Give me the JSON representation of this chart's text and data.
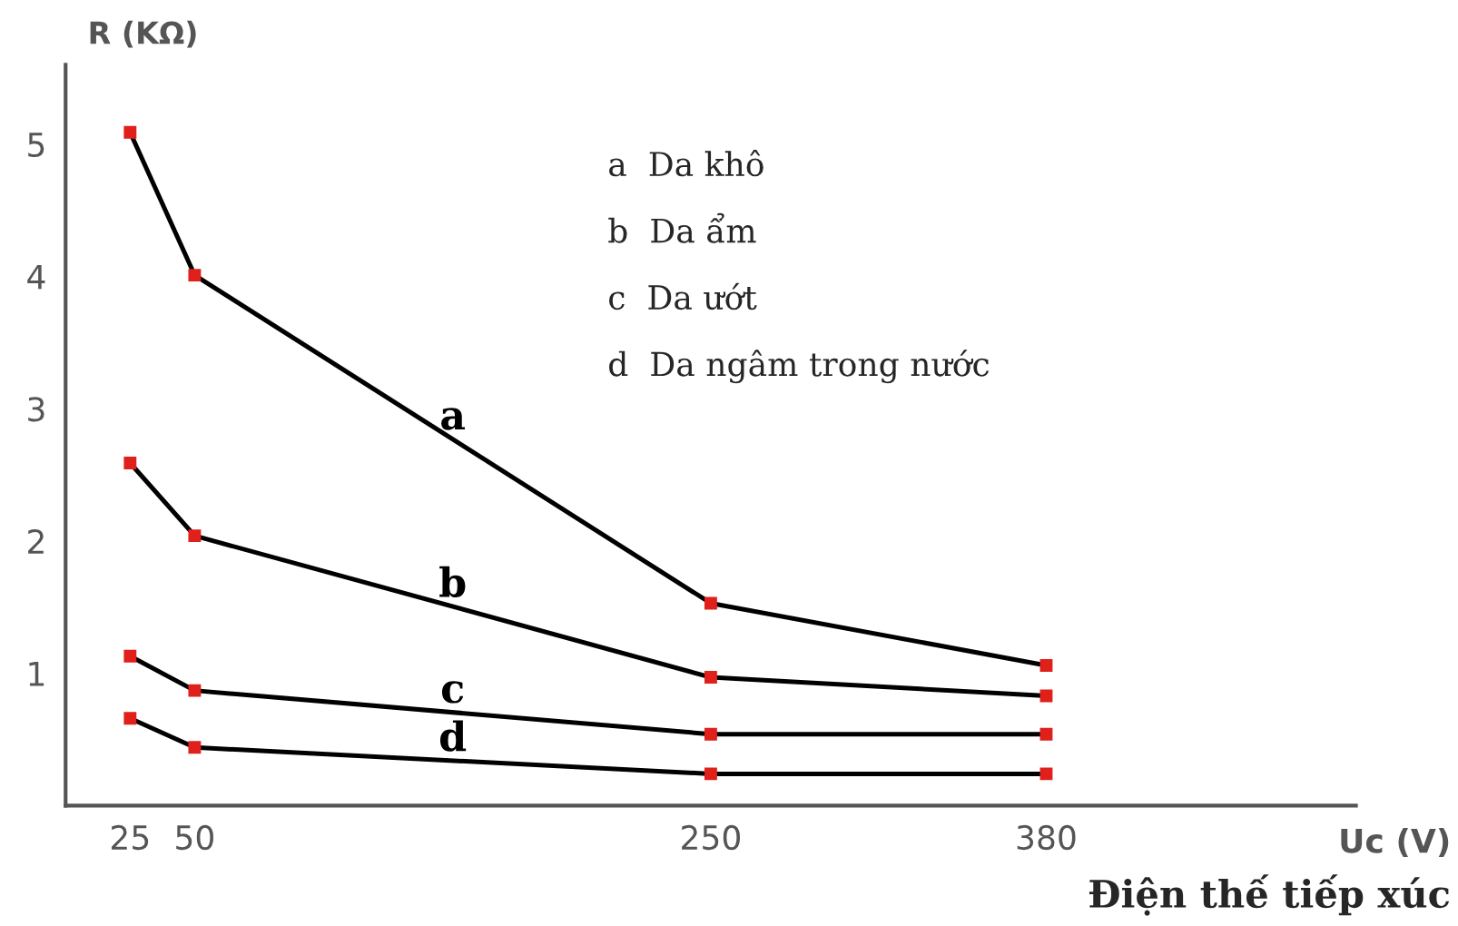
{
  "chart_data": {
    "type": "line",
    "xlabel": "Uc (V)",
    "ylabel": "R (KΩ)",
    "x": [
      25,
      50,
      250,
      380
    ],
    "xlim": [
      0,
      500
    ],
    "ylim": [
      0,
      5.6
    ],
    "xticks": [
      25,
      50,
      250,
      380
    ],
    "yticks": [
      1,
      2,
      3,
      4,
      5
    ],
    "grid": false,
    "marker": "square",
    "line_style": "solid",
    "series": [
      {
        "name": "a",
        "color": "#000000",
        "values": [
          5.09,
          4.01,
          1.53,
          1.06
        ]
      },
      {
        "name": "b",
        "color": "#000000",
        "values": [
          2.59,
          2.04,
          0.97,
          0.83
        ]
      },
      {
        "name": "c",
        "color": "#000000",
        "values": [
          1.13,
          0.87,
          0.54,
          0.54
        ]
      },
      {
        "name": "d",
        "color": "#000000",
        "values": [
          0.66,
          0.44,
          0.24,
          0.24
        ]
      }
    ],
    "annotations": [
      "a  Da khô",
      "b  Da ẩm",
      "c  Da ướt",
      "d  Da ngâm trong nước",
      "Điện thế tiếp xúc"
    ]
  }
}
